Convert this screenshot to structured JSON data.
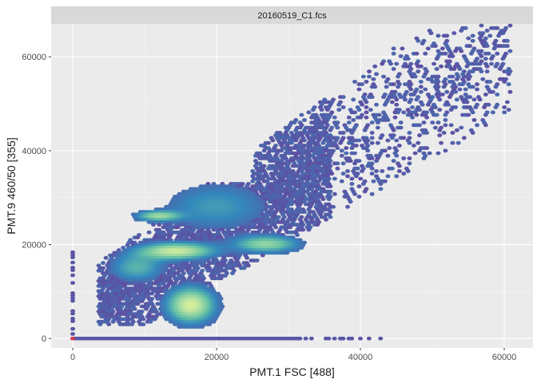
{
  "chart_data": {
    "type": "hexbin",
    "facet_label": "20160519_C1.fcs",
    "xlabel": "PMT.1 FSC [488]",
    "ylabel": "PMT.9 460/50 [355]",
    "xlim": [
      -3000,
      64000
    ],
    "ylim": [
      -2000,
      67000
    ],
    "x_ticks": [
      0,
      20000,
      40000,
      60000
    ],
    "x_tick_labels": [
      "0",
      "20000",
      "40000",
      "60000"
    ],
    "y_ticks": [
      0,
      20000,
      40000,
      60000
    ],
    "y_tick_labels": [
      "0",
      "20000",
      "40000",
      "60000"
    ],
    "grid": true,
    "color_scale": [
      "#5e4fa2",
      "#3288bd",
      "#66c2a5",
      "#abdda4",
      "#e6f598"
    ],
    "clusters": [
      {
        "cx": 16500,
        "cy": 7000,
        "sx": 2200,
        "sy": 2500,
        "density": 0.85
      },
      {
        "cx": 14500,
        "cy": 18500,
        "sx": 3500,
        "sy": 1200,
        "density": 0.8
      },
      {
        "cx": 12000,
        "cy": 26000,
        "sx": 2000,
        "sy": 700,
        "density": 0.6
      },
      {
        "cx": 27000,
        "cy": 20000,
        "sx": 3000,
        "sy": 1200,
        "density": 0.6
      },
      {
        "cx": 20000,
        "cy": 28000,
        "sx": 5000,
        "sy": 3500,
        "density": 0.3
      },
      {
        "cx": 9000,
        "cy": 15000,
        "sx": 2500,
        "sy": 2000,
        "density": 0.4
      }
    ],
    "baseline": {
      "y": 0,
      "x_from": 0,
      "x_to": 43000
    },
    "saturated_point": {
      "x": 0,
      "y": 0
    }
  }
}
